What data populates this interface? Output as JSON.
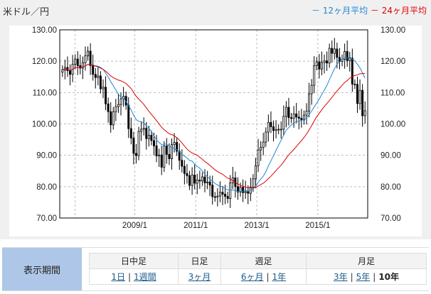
{
  "header": {
    "title": "米ドル／円",
    "legend_12": "－ 12ヶ月平均",
    "legend_24": "－ 24ヶ月平均"
  },
  "colors": {
    "ma12": "#1e88d8",
    "ma24": "#e00000",
    "period_label_bg": "#aec6e8"
  },
  "chart_data": {
    "type": "candlestick",
    "title": "米ドル／円",
    "ylim": [
      70,
      130
    ],
    "yticks": [
      "130.00",
      "120.00",
      "110.00",
      "100.00",
      "90.00",
      "80.00",
      "70.00"
    ],
    "xticks": [
      {
        "label": "2009/1",
        "month_index": 29
      },
      {
        "label": "2011/1",
        "month_index": 53
      },
      {
        "label": "2013/1",
        "month_index": 77
      },
      {
        "label": "2015/1",
        "month_index": 101
      }
    ],
    "start": "2006/8",
    "end": "2016/7",
    "series": [
      {
        "name": "12ヶ月平均",
        "period": 12
      },
      {
        "name": "24ヶ月平均",
        "period": 24
      }
    ],
    "first_open": 116.5,
    "close": [
      117.2,
      118.0,
      117.0,
      115.8,
      119.0,
      120.7,
      118.6,
      117.8,
      119.5,
      121.7,
      123.2,
      118.6,
      115.8,
      114.8,
      115.3,
      111.2,
      111.7,
      106.4,
      103.9,
      99.7,
      103.9,
      105.5,
      106.2,
      108.0,
      108.8,
      106.0,
      98.5,
      95.5,
      90.6,
      89.9,
      97.6,
      98.3,
      98.6,
      95.3,
      96.4,
      94.7,
      93.0,
      89.8,
      90.1,
      86.2,
      93.0,
      90.3,
      88.9,
      93.4,
      94.1,
      91.3,
      88.4,
      86.5,
      84.2,
      83.5,
      80.4,
      83.7,
      81.1,
      82.1,
      81.8,
      83.1,
      81.2,
      81.5,
      80.5,
      76.8,
      76.7,
      77.0,
      78.2,
      77.6,
      76.9,
      76.2,
      81.2,
      82.8,
      80.0,
      78.3,
      79.8,
      78.1,
      78.4,
      77.9,
      79.8,
      82.5,
      86.7,
      91.7,
      92.5,
      94.2,
      97.4,
      100.5,
      99.1,
      97.9,
      98.2,
      98.3,
      98.3,
      102.4,
      105.3,
      102.0,
      101.8,
      103.2,
      102.2,
      101.8,
      101.3,
      102.8,
      104.1,
      109.6,
      112.3,
      118.6,
      119.8,
      117.5,
      119.6,
      120.1,
      119.4,
      124.1,
      122.5,
      123.9,
      121.2,
      119.9,
      120.6,
      123.1,
      120.2,
      121.0,
      112.7,
      112.6,
      106.5,
      110.7,
      102.6,
      104.2
    ]
  },
  "period": {
    "label": "表示期間",
    "groups": [
      "日中足",
      "日足",
      "週足",
      "月足"
    ],
    "links": {
      "d1": "1日",
      "w1": "1週間",
      "m3": "3ヶ月",
      "m6": "6ヶ月",
      "y1": "1年",
      "y3": "3年",
      "y5": "5年",
      "y10": "10年"
    },
    "sep": "|"
  }
}
